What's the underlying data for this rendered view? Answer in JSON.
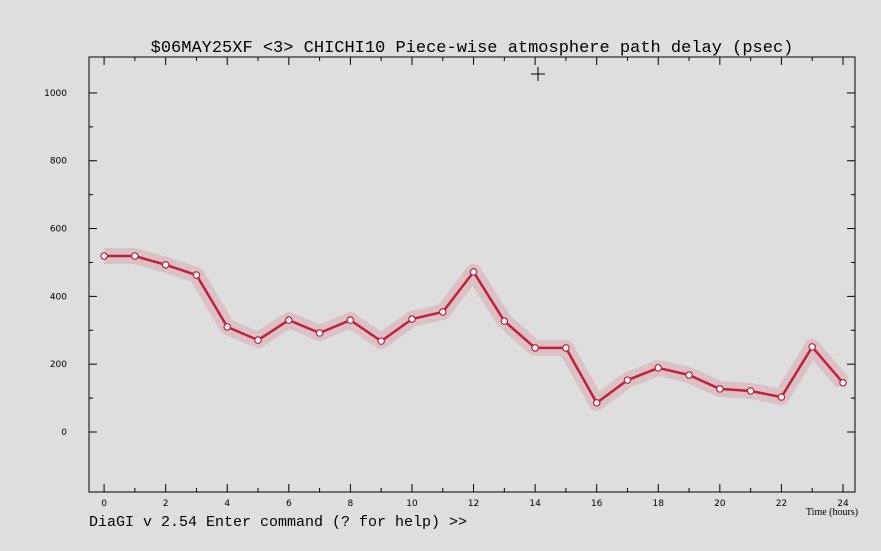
{
  "chart_data": {
    "type": "line",
    "title": "$06MAY25XF <3>   CHICHI10  Piece-wise atmosphere path delay (psec)",
    "x_label": "Time (hours)",
    "x": [
      0,
      1,
      2,
      3,
      4,
      5,
      6,
      7,
      8,
      9,
      10,
      11,
      12,
      13,
      14,
      15,
      16,
      17,
      18,
      19,
      20,
      21,
      22,
      23,
      24
    ],
    "series": [
      {
        "color": "#c41e3a",
        "values": [
          519,
          519,
          493,
          463,
          310,
          271,
          330,
          292,
          330,
          268,
          333,
          354,
          472,
          327,
          248,
          248,
          86,
          153,
          189,
          168,
          127,
          121,
          103,
          251,
          145
        ]
      }
    ],
    "xlim": [
      -0.49,
      24.39
    ],
    "xticks": [
      0,
      2,
      4,
      6,
      8,
      10,
      12,
      14,
      16,
      18,
      20,
      22,
      24
    ],
    "ylim": [
      -177,
      1106
    ],
    "yticks": [
      0,
      200,
      400,
      600,
      800,
      1000
    ]
  },
  "status_bar": {
    "prompt": "DiaGI v 2.54  Enter command (? for help) >>"
  }
}
